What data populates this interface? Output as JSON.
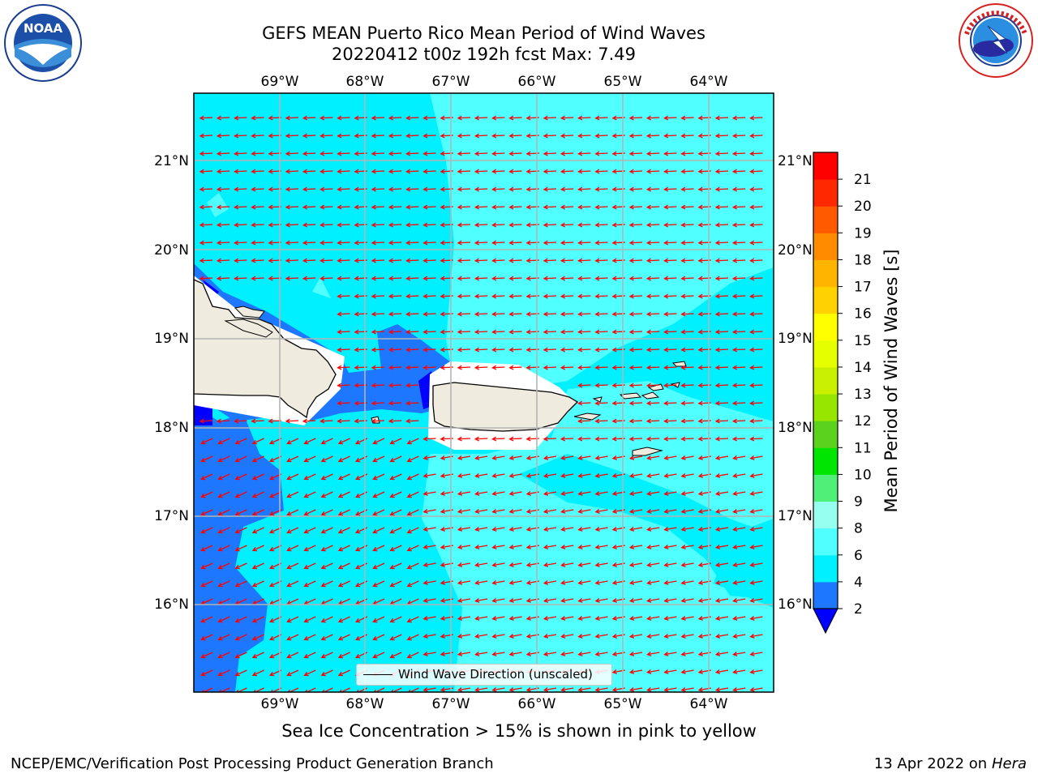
{
  "header": {
    "title_line1": "GEFS MEAN Puerto Rico Mean Period of Wind Waves",
    "title_line2": "20220412 t00z 192h fcst   Max: 7.49"
  },
  "logos": {
    "left": "noaa-logo",
    "right": "nws-logo"
  },
  "map": {
    "lon_ticks": [
      "69°W",
      "68°W",
      "67°W",
      "66°W",
      "65°W",
      "64°W"
    ],
    "lat_ticks": [
      "21°N",
      "20°N",
      "19°N",
      "18°N",
      "17°N",
      "16°N"
    ],
    "land_color": "#efecdf",
    "arrow_color": "#ff0000",
    "legend_label": "Wind Wave Direction (unscaled)"
  },
  "colorbar": {
    "label": "Mean Period of Wind Waves [s]",
    "tick_labels": [
      "2",
      "4",
      "6",
      "8",
      "9",
      "10",
      "11",
      "12",
      "13",
      "14",
      "15",
      "16",
      "17",
      "18",
      "19",
      "20",
      "21"
    ],
    "colors": [
      "#1e78ff",
      "#00f0ff",
      "#50ffff",
      "#96fff0",
      "#50f078",
      "#00e600",
      "#5ad21e",
      "#96e600",
      "#c8f000",
      "#e6ff00",
      "#ffff00",
      "#ffd200",
      "#ffb400",
      "#ff8c00",
      "#ff5a00",
      "#ff2800",
      "#ff0000"
    ],
    "under_color": "#0000ff"
  },
  "footer": {
    "note": "Sea Ice Concentration > 15% is shown in pink to yellow",
    "left": "NCEP/EMC/Verification Post Processing Product Generation Branch",
    "right_date": "13 Apr 2022 on ",
    "right_host": "Hera"
  }
}
